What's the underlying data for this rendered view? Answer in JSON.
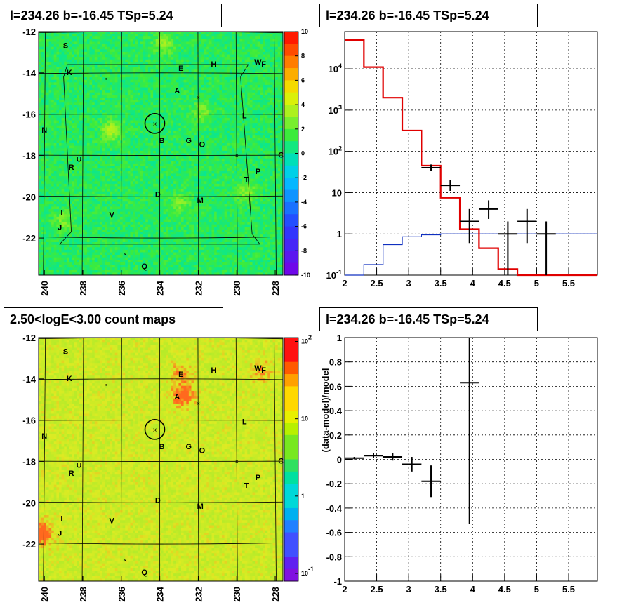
{
  "titles": {
    "top_left": "l=234.26 b=-16.45 TSp=5.24",
    "top_right": "l=234.26 b=-16.45 TSp=5.24",
    "bottom_left": "2.50<logE<3.00 count maps",
    "bottom_right": "l=234.26 b=-16.45 TSp=5.24"
  },
  "colors": {
    "data": "#000000",
    "model_total": "#e00000",
    "model_source": "#1030c0"
  },
  "chart_data": [
    {
      "type": "heatmap",
      "panel": "tsmap",
      "x_ticks": [
        "240",
        "238",
        "236",
        "234",
        "232",
        "230",
        "228"
      ],
      "y_ticks": [
        "-12",
        "-14",
        "-16",
        "-18",
        "-20",
        "-22"
      ],
      "xlim": [
        240.3,
        227.6
      ],
      "ylim": [
        -23.8,
        -12
      ],
      "colorbar_ticks": [
        "10",
        "8",
        "6",
        "4",
        "2",
        "0",
        "-2",
        "-4",
        "-6",
        "-8",
        "-10"
      ],
      "zlim": [
        -10,
        10
      ],
      "circle_center": [
        234.26,
        -16.45
      ],
      "sources": [
        {
          "label": "S",
          "l": 238.9,
          "b": -12.8
        },
        {
          "label": "K",
          "l": 238.7,
          "b": -14.1
        },
        {
          "label": "E",
          "l": 232.9,
          "b": -13.9
        },
        {
          "label": "H",
          "l": 231.2,
          "b": -13.7
        },
        {
          "label": "W",
          "l": 228.9,
          "b": -13.6
        },
        {
          "label": "F",
          "l": 228.6,
          "b": -13.7
        },
        {
          "label": "A",
          "l": 233.1,
          "b": -15.0
        },
        {
          "label": "N",
          "l": 240.0,
          "b": -16.9
        },
        {
          "label": "L",
          "l": 229.6,
          "b": -16.2
        },
        {
          "label": "B",
          "l": 233.9,
          "b": -17.4
        },
        {
          "label": "G",
          "l": 232.5,
          "b": -17.4
        },
        {
          "label": "O",
          "l": 231.8,
          "b": -17.6
        },
        {
          "label": "U",
          "l": 238.2,
          "b": -18.3
        },
        {
          "label": "R",
          "l": 238.6,
          "b": -18.7
        },
        {
          "label": "C",
          "l": 227.7,
          "b": -18.1
        },
        {
          "label": "P",
          "l": 228.9,
          "b": -18.9
        },
        {
          "label": "T",
          "l": 229.5,
          "b": -19.3
        },
        {
          "label": "D",
          "l": 234.1,
          "b": -20.0
        },
        {
          "label": "M",
          "l": 231.9,
          "b": -20.3
        },
        {
          "label": "I",
          "l": 239.1,
          "b": -20.9
        },
        {
          "label": "V",
          "l": 236.5,
          "b": -21.0
        },
        {
          "label": "J",
          "l": 239.2,
          "b": -21.6
        },
        {
          "label": "Q",
          "l": 234.8,
          "b": -23.5
        }
      ]
    },
    {
      "type": "line",
      "panel": "spectrum",
      "xlabel": "",
      "ylabel": "",
      "x_ticks": [
        "2",
        "2.5",
        "3",
        "3.5",
        "4",
        "4.5",
        "5",
        "5.5"
      ],
      "y_ticks": [
        "10^4",
        "10^3",
        "10^2",
        "10",
        "1",
        "10^-1"
      ],
      "xlim": [
        2,
        5.95
      ],
      "ylim": [
        0.1,
        80000
      ],
      "log_y": true,
      "grid": true,
      "series": [
        {
          "bin_edges": [
            2.0,
            2.3,
            2.6,
            2.9,
            3.2,
            3.5,
            3.8,
            4.1,
            4.4,
            4.7,
            5.0,
            5.3,
            5.95
          ],
          "values": [
            50000,
            11000,
            2000,
            320,
            45,
            7.5,
            1.3,
            0.45,
            0.14,
            0.1,
            0.1,
            0.1
          ]
        },
        {
          "bin_edges": [
            2.0,
            2.3,
            2.6,
            2.9,
            3.2,
            3.5,
            3.8,
            4.1,
            4.4,
            4.7,
            5.0,
            5.3,
            5.95
          ],
          "values": [
            0.07,
            0.18,
            0.55,
            0.85,
            0.95,
            1.0,
            1.0,
            1.0,
            1.0,
            1.0,
            1.0,
            1.0
          ]
        },
        {
          "points": [
            {
              "x": 3.35,
              "y": 40,
              "xerr": 0.15,
              "ylo": 33,
              "yhi": 48
            },
            {
              "x": 3.65,
              "y": 15,
              "xerr": 0.15,
              "ylo": 11,
              "yhi": 20
            },
            {
              "x": 3.95,
              "y": 2,
              "xerr": 0.15,
              "ylo": 0.6,
              "yhi": 4
            },
            {
              "x": 4.25,
              "y": 4,
              "xerr": 0.15,
              "ylo": 2.3,
              "yhi": 6.5
            },
            {
              "x": 4.55,
              "y": 1,
              "xerr": 0.15,
              "ylo": 0.1,
              "yhi": 2
            },
            {
              "x": 4.85,
              "y": 2,
              "xerr": 0.15,
              "ylo": 0.6,
              "yhi": 4
            },
            {
              "x": 5.15,
              "y": 1,
              "xerr": 0.15,
              "ylo": 0.1,
              "yhi": 2
            }
          ]
        }
      ]
    },
    {
      "type": "heatmap",
      "panel": "countmap",
      "x_ticks": [
        "240",
        "238",
        "236",
        "234",
        "232",
        "230",
        "228"
      ],
      "y_ticks": [
        "-12",
        "-14",
        "-16",
        "-18",
        "-20",
        "-22"
      ],
      "xlim": [
        240.3,
        227.6
      ],
      "ylim": [
        -23.8,
        -12
      ],
      "colorbar_ticks": [
        "10^2",
        "10",
        "1",
        "10^-1"
      ],
      "zlim": [
        0.1,
        100
      ],
      "log_z": true,
      "circle_center": [
        234.26,
        -16.45
      ]
    },
    {
      "type": "scatter",
      "panel": "residuals",
      "ylabel": "(data-model)/model",
      "x_ticks": [
        "2",
        "2.5",
        "3",
        "3.5",
        "4",
        "4.5",
        "5",
        "5.5"
      ],
      "y_ticks": [
        "1",
        "0.8",
        "0.6",
        "0.4",
        "0.2",
        "0",
        "-0.2",
        "-0.4",
        "-0.6",
        "-0.8",
        "-1"
      ],
      "xlim": [
        2,
        5.95
      ],
      "ylim": [
        -1,
        1
      ],
      "grid": true,
      "points": [
        {
          "x": 2.15,
          "y": 0.01,
          "xerr": 0.15,
          "ylo": 0.0,
          "yhi": 0.02
        },
        {
          "x": 2.45,
          "y": 0.03,
          "xerr": 0.15,
          "ylo": 0.01,
          "yhi": 0.05
        },
        {
          "x": 2.75,
          "y": 0.02,
          "xerr": 0.15,
          "ylo": -0.01,
          "yhi": 0.05
        },
        {
          "x": 3.05,
          "y": -0.04,
          "xerr": 0.15,
          "ylo": -0.1,
          "yhi": 0.02
        },
        {
          "x": 3.35,
          "y": -0.18,
          "xerr": 0.15,
          "ylo": -0.31,
          "yhi": -0.05
        },
        {
          "x": 3.95,
          "y": 0.63,
          "xerr": 0.15,
          "ylo": -0.53,
          "yhi": 1.0
        }
      ]
    }
  ]
}
